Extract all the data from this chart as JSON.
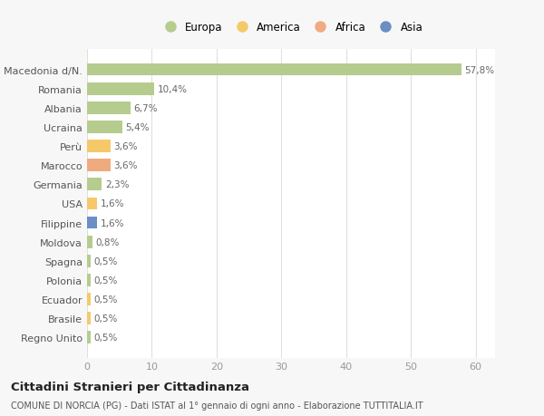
{
  "categories": [
    "Regno Unito",
    "Brasile",
    "Ecuador",
    "Polonia",
    "Spagna",
    "Moldova",
    "Filippine",
    "USA",
    "Germania",
    "Marocco",
    "Perù",
    "Ucraina",
    "Albania",
    "Romania",
    "Macedonia d/N."
  ],
  "values": [
    0.5,
    0.5,
    0.5,
    0.5,
    0.5,
    0.8,
    1.6,
    1.6,
    2.3,
    3.6,
    3.6,
    5.4,
    6.7,
    10.4,
    57.8
  ],
  "labels": [
    "0,5%",
    "0,5%",
    "0,5%",
    "0,5%",
    "0,5%",
    "0,8%",
    "1,6%",
    "1,6%",
    "2,3%",
    "3,6%",
    "3,6%",
    "5,4%",
    "6,7%",
    "10,4%",
    "57,8%"
  ],
  "colors": [
    "#b5cc8e",
    "#f5c96a",
    "#f5c96a",
    "#b5cc8e",
    "#b5cc8e",
    "#b5cc8e",
    "#6b8fc4",
    "#f5c96a",
    "#b5cc8e",
    "#f0aa80",
    "#f5c96a",
    "#b5cc8e",
    "#b5cc8e",
    "#b5cc8e",
    "#b5cc8e"
  ],
  "legend_labels": [
    "Europa",
    "America",
    "Africa",
    "Asia"
  ],
  "legend_colors": [
    "#b5cc8e",
    "#f5c96a",
    "#f0aa80",
    "#6b8fc4"
  ],
  "title": "Cittadini Stranieri per Cittadinanza",
  "subtitle": "COMUNE DI NORCIA (PG) - Dati ISTAT al 1° gennaio di ogni anno - Elaborazione TUTTITALIA.IT",
  "xlim": [
    0,
    63
  ],
  "xticks": [
    0,
    10,
    20,
    30,
    40,
    50,
    60
  ],
  "background_color": "#f7f7f7",
  "bar_background": "#ffffff",
  "grid_color": "#e0e0e0"
}
